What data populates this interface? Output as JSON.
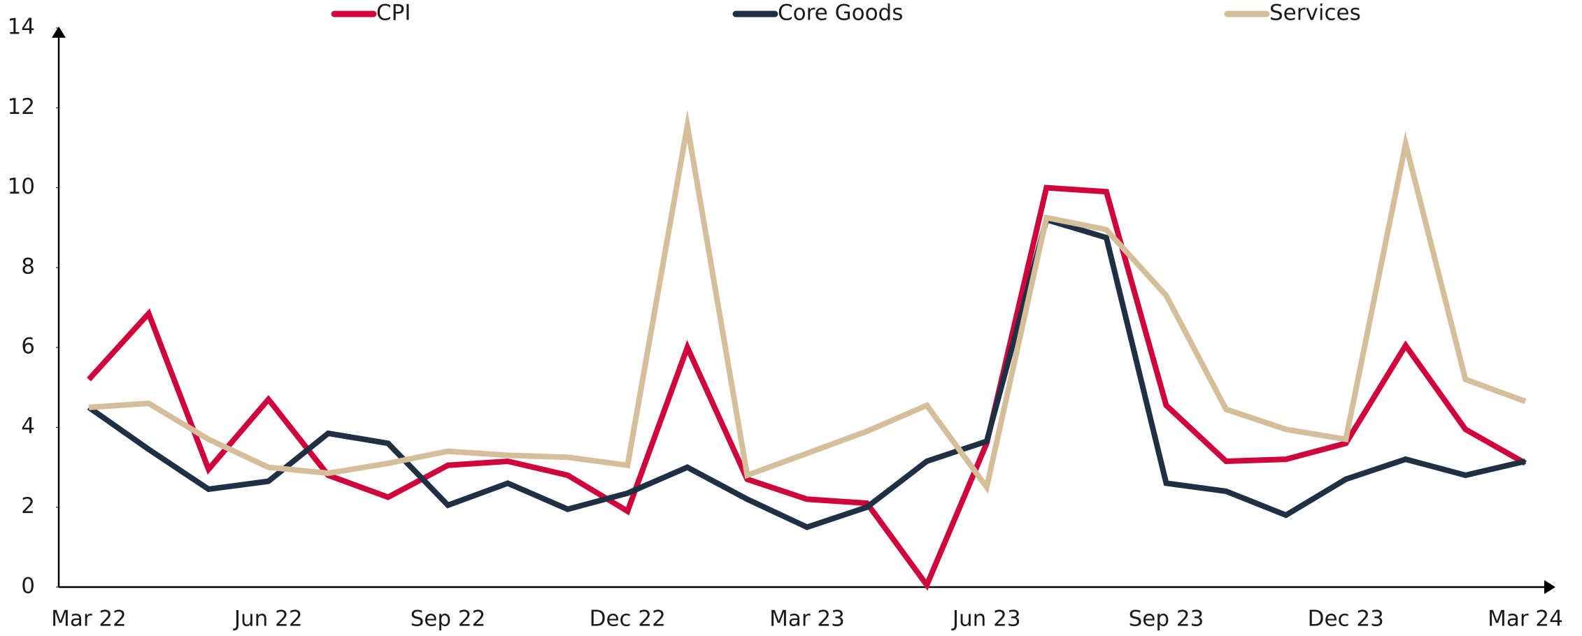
{
  "chart_data": {
    "type": "line",
    "categories": [
      "Mar 22",
      null,
      null,
      "Jun 22",
      null,
      null,
      "Sep 22",
      null,
      null,
      "Dec 22",
      null,
      null,
      "Mar 23",
      null,
      null,
      "Jun 23",
      null,
      null,
      "Sep 23",
      null,
      null,
      "Dec 23",
      null,
      null,
      "Mar 24"
    ],
    "series": [
      {
        "name": "CPI",
        "color": "#d0043c",
        "values": [
          5.2,
          6.85,
          2.95,
          4.7,
          2.8,
          2.25,
          3.05,
          3.15,
          2.8,
          1.9,
          6.0,
          2.7,
          2.2,
          2.1,
          0.05,
          3.6,
          10.0,
          9.9,
          4.55,
          3.15,
          3.2,
          3.6,
          6.05,
          3.95,
          3.1
        ]
      },
      {
        "name": "Core Goods",
        "color": "#1f3044",
        "values": [
          4.5,
          3.45,
          2.45,
          2.65,
          3.85,
          3.6,
          2.05,
          2.6,
          1.95,
          2.35,
          3.0,
          2.2,
          1.5,
          2.0,
          3.15,
          3.65,
          9.2,
          8.75,
          2.6,
          2.4,
          1.8,
          2.7,
          3.2,
          2.8,
          3.15
        ]
      },
      {
        "name": "Services",
        "color": "#d4bf9a",
        "values": [
          4.5,
          4.6,
          3.7,
          3.0,
          2.85,
          3.1,
          3.4,
          3.3,
          3.25,
          3.05,
          11.55,
          2.8,
          3.35,
          3.9,
          4.55,
          2.5,
          9.25,
          8.95,
          7.3,
          4.45,
          3.95,
          3.7,
          11.1,
          5.2,
          4.65
        ]
      }
    ],
    "ylim": [
      0,
      14
    ],
    "yticks": [
      0,
      2,
      4,
      6,
      8,
      10,
      12,
      14
    ]
  }
}
